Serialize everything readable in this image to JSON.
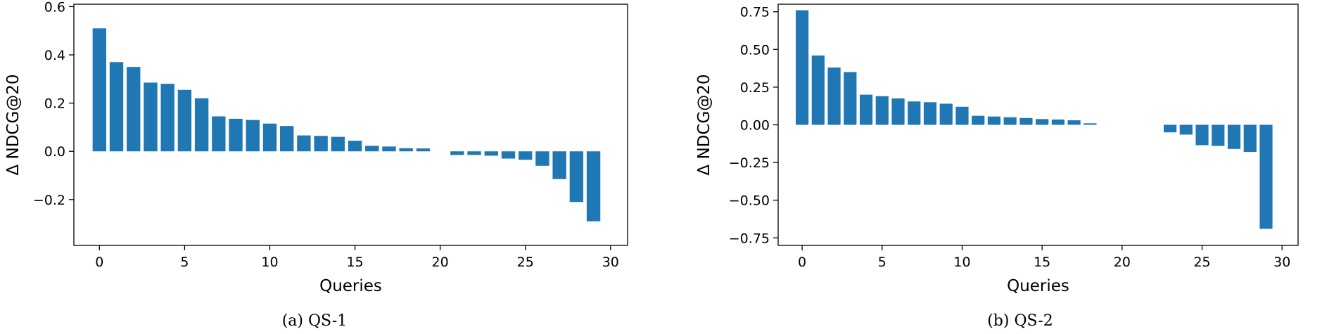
{
  "bar_color": "#1f77b4",
  "chart_data": [
    {
      "type": "bar",
      "caption": "(a)  QS-1",
      "xlabel": "Queries",
      "ylabel": "Δ NDCG@20",
      "xlim": [
        -1.5,
        31
      ],
      "ylim": [
        -0.39,
        0.61
      ],
      "xticks": [
        0,
        5,
        10,
        15,
        20,
        25,
        30
      ],
      "yticks": [
        -0.2,
        0.0,
        0.2,
        0.4,
        0.6
      ],
      "ytick_labels": [
        "−0.2",
        "0.0",
        "0.2",
        "0.4",
        "0.6"
      ],
      "x": [
        0,
        1,
        2,
        3,
        4,
        5,
        6,
        7,
        8,
        9,
        10,
        11,
        12,
        13,
        14,
        15,
        16,
        17,
        18,
        19,
        20,
        21,
        22,
        23,
        24,
        25,
        26,
        27,
        28,
        29
      ],
      "values": [
        0.51,
        0.37,
        0.35,
        0.285,
        0.28,
        0.255,
        0.22,
        0.145,
        0.135,
        0.13,
        0.115,
        0.105,
        0.066,
        0.064,
        0.06,
        0.044,
        0.023,
        0.02,
        0.013,
        0.012,
        0.0,
        -0.015,
        -0.015,
        -0.018,
        -0.03,
        -0.035,
        -0.06,
        -0.115,
        -0.21,
        -0.29
      ]
    },
    {
      "type": "bar",
      "caption": "(b)  QS-2",
      "xlabel": "Queries",
      "ylabel": "Δ NDCG@20",
      "xlim": [
        -1.5,
        31
      ],
      "ylim": [
        -0.8,
        0.8
      ],
      "xticks": [
        0,
        5,
        10,
        15,
        20,
        25,
        30
      ],
      "yticks": [
        -0.75,
        -0.5,
        -0.25,
        0.0,
        0.25,
        0.5,
        0.75
      ],
      "ytick_labels": [
        "−0.75",
        "−0.50",
        "−0.25",
        "0.00",
        "0.25",
        "0.50",
        "0.75"
      ],
      "x": [
        0,
        1,
        2,
        3,
        4,
        5,
        6,
        7,
        8,
        9,
        10,
        11,
        12,
        13,
        14,
        15,
        16,
        17,
        18,
        19,
        20,
        21,
        22,
        23,
        24,
        25,
        26,
        27,
        28,
        29
      ],
      "values": [
        0.76,
        0.46,
        0.38,
        0.35,
        0.2,
        0.19,
        0.175,
        0.155,
        0.15,
        0.14,
        0.12,
        0.06,
        0.055,
        0.05,
        0.045,
        0.038,
        0.035,
        0.03,
        0.01,
        0.0,
        0.0,
        0.0,
        0.0,
        -0.05,
        -0.065,
        -0.135,
        -0.14,
        -0.16,
        -0.18,
        -0.69
      ]
    }
  ]
}
